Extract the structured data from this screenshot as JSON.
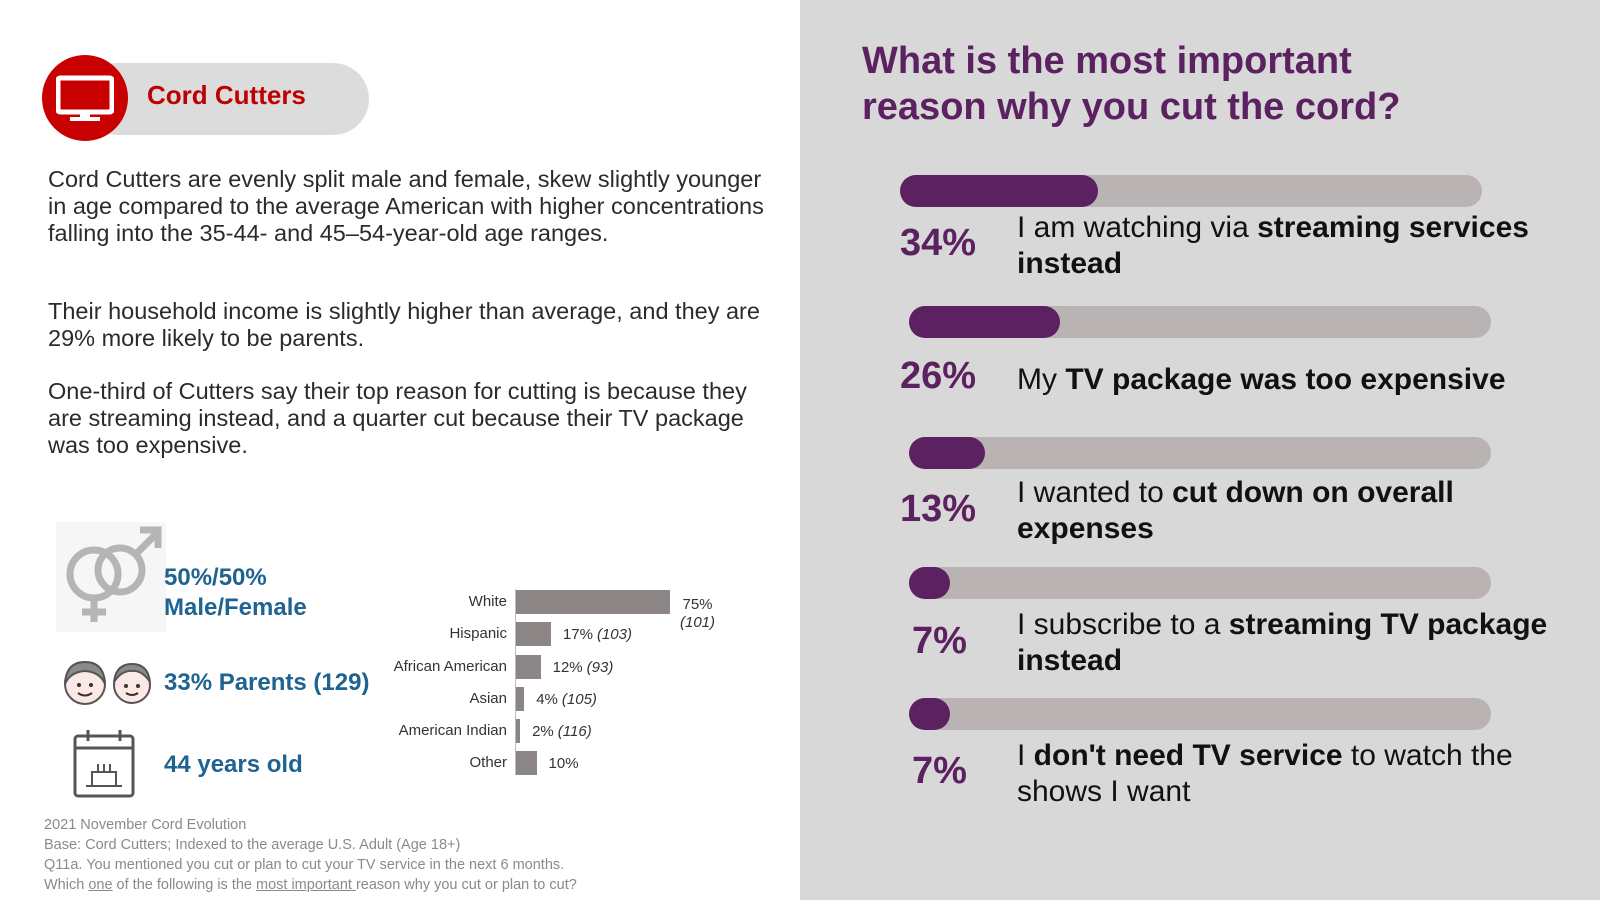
{
  "badge": {
    "label": "Cord Cutters"
  },
  "paragraphs": [
    "Cord Cutters are evenly split male and female, skew slightly younger in age compared to the average American with higher concentrations falling into the 35-44- and 45–54-year-old age ranges.",
    "Their household income is slightly higher than average, and they are 29% more likely to be parents.",
    "One-third of Cutters say their top reason for cutting is because they are streaming instead, and a quarter cut because their TV package was too expensive."
  ],
  "demographics": {
    "gender_line1": "50%/50%",
    "gender_line2": "Male/Female",
    "parents": "33% Parents (129)",
    "age": "44 years old"
  },
  "ethnicity": [
    {
      "label": "White",
      "value": 75,
      "value_text": "75%",
      "index_text": "(101)"
    },
    {
      "label": "Hispanic",
      "value": 17,
      "value_text": "17%",
      "index_text": "(103)"
    },
    {
      "label": "African American",
      "value": 12,
      "value_text": "12%",
      "index_text": "(93)"
    },
    {
      "label": "Asian",
      "value": 4,
      "value_text": "4%",
      "index_text": "(105)"
    },
    {
      "label": "American Indian",
      "value": 2,
      "value_text": "2%",
      "index_text": "(116)"
    },
    {
      "label": "Other",
      "value": 10,
      "value_text": "10%",
      "index_text": ""
    }
  ],
  "footnote": {
    "line1": "2021 November Cord Evolution",
    "line2": "Base: Cord Cutters; Indexed to the average U.S. Adult (Age 18+)",
    "line3": "Q11a. You mentioned you cut or plan to cut your TV service in the next 6 months.",
    "line4_a": "Which ",
    "line4_b": "one",
    "line4_c": " of the following is the ",
    "line4_d": "most important ",
    "line4_e": "reason why you cut or plan to cut?"
  },
  "question": {
    "title_line1": "What is the most important",
    "title_line2": "reason why you cut the cord?"
  },
  "reasons": [
    {
      "pct": "34%",
      "fraction": 0.34,
      "pre": "I am watching via ",
      "bold": "streaming services instead",
      "post": ""
    },
    {
      "pct": "26%",
      "fraction": 0.26,
      "pre": "My ",
      "bold": "TV package was too expensive",
      "post": ""
    },
    {
      "pct": "13%",
      "fraction": 0.13,
      "pre": "I wanted to ",
      "bold": "cut down on overall expenses",
      "post": ""
    },
    {
      "pct": "7%",
      "fraction": 0.07,
      "pre": "I subscribe to a ",
      "bold": "streaming TV package instead",
      "post": ""
    },
    {
      "pct": "7%",
      "fraction": 0.07,
      "pre": "I ",
      "bold": "don't need TV service",
      "post": " to watch the shows I want"
    }
  ],
  "colors": {
    "brand_red": "#c80000",
    "purple": "#5b2160",
    "track": "#b9b3b3",
    "bar_gray": "#8c8585",
    "blue": "#1f6391"
  }
}
